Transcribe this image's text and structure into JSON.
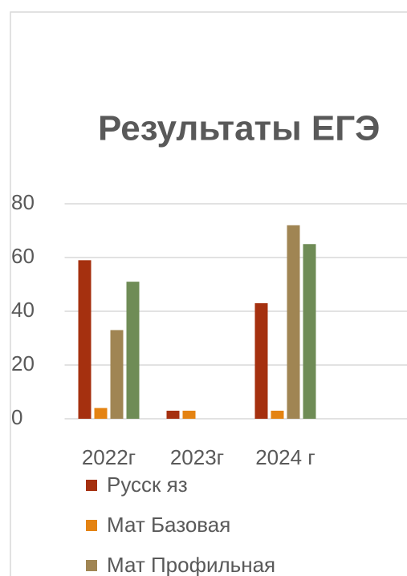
{
  "chart_data": {
    "type": "bar",
    "title": "Результаты ЕГЭ",
    "categories": [
      "2022г",
      "2023г",
      "2024 г",
      null
    ],
    "series": [
      {
        "name": "Русск яз",
        "color": "#a5300f",
        "values": [
          59,
          3,
          43,
          null
        ]
      },
      {
        "name": "Мат Базовая",
        "color": "#e48312",
        "values": [
          4,
          3,
          3,
          null
        ]
      },
      {
        "name": "Мат Профильная",
        "color": "#a08553",
        "values": [
          33,
          null,
          72,
          null
        ]
      },
      {
        "color": "#6f8c56",
        "values": [
          51,
          null,
          65,
          null
        ]
      }
    ],
    "ylim": [
      0,
      80
    ],
    "yticks": [
      0,
      20,
      40,
      60,
      80
    ],
    "grid": true,
    "legend": "bottom"
  }
}
